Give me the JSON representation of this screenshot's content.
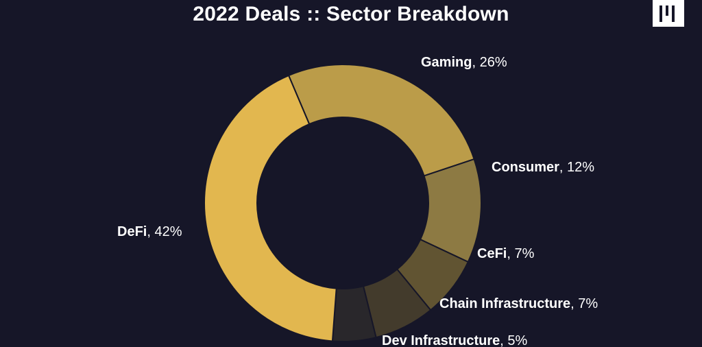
{
  "header": {
    "title": "2022 Deals :: Sector Breakdown"
  },
  "logo": {
    "icon": "brand-logo-icon"
  },
  "colors": {
    "background": "#161628",
    "text": "#ffffff"
  },
  "chart_data": {
    "type": "pie",
    "variant": "donut",
    "title": "2022 Deals :: Sector Breakdown",
    "legend": "none",
    "slices": [
      {
        "name": "Gaming",
        "pct_label": "26%",
        "value": 26,
        "color": "#BB9C49"
      },
      {
        "name": "Consumer",
        "pct_label": "12%",
        "value": 12,
        "color": "#8D7A43"
      },
      {
        "name": "CeFi",
        "pct_label": "7%",
        "value": 7,
        "color": "#615432"
      },
      {
        "name": "Chain Infrastructure",
        "pct_label": "7%",
        "value": 7,
        "color": "#433B2C"
      },
      {
        "name": "Dev Infrastructure",
        "pct_label": "5%",
        "value": 5,
        "color": "#29272B"
      },
      {
        "name": "DeFi",
        "pct_label": "42%",
        "value": 42,
        "color": "#E2B74F"
      }
    ]
  }
}
